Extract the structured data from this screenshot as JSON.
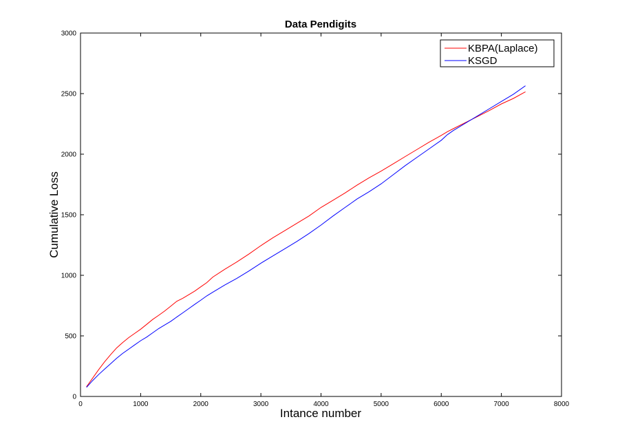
{
  "chart_data": {
    "type": "line",
    "title": "Data Pendigits",
    "xlabel": "Intance number",
    "ylabel": "Cumulative Loss",
    "xlim": [
      0,
      8000
    ],
    "ylim": [
      0,
      3000
    ],
    "xticks": [
      0,
      1000,
      2000,
      3000,
      4000,
      5000,
      6000,
      7000,
      8000
    ],
    "yticks": [
      0,
      500,
      1000,
      1500,
      2000,
      2500,
      3000
    ],
    "grid": false,
    "legend_position": "top-right",
    "series": [
      {
        "name": "KBPA(Laplace)",
        "color": "#ff0000",
        "x": [
          100,
          200,
          300,
          400,
          500,
          600,
          700,
          800,
          900,
          1000,
          1100,
          1200,
          1300,
          1400,
          1500,
          1600,
          1700,
          1800,
          1900,
          2000,
          2100,
          2200,
          2400,
          2600,
          2800,
          3000,
          3200,
          3400,
          3600,
          3800,
          4000,
          4200,
          4400,
          4600,
          4800,
          5000,
          5200,
          5400,
          5600,
          5800,
          6000,
          6100,
          6200,
          6400,
          6600,
          6800,
          7000,
          7200,
          7400
        ],
        "values": [
          80,
          150,
          220,
          285,
          345,
          400,
          445,
          485,
          520,
          555,
          595,
          635,
          670,
          705,
          745,
          785,
          810,
          840,
          870,
          905,
          940,
          985,
          1050,
          1110,
          1175,
          1245,
          1310,
          1370,
          1430,
          1490,
          1560,
          1620,
          1680,
          1745,
          1805,
          1860,
          1920,
          1980,
          2040,
          2100,
          2155,
          2185,
          2210,
          2260,
          2310,
          2360,
          2415,
          2460,
          2515
        ]
      },
      {
        "name": "KSGD",
        "color": "#0000ff",
        "x": [
          100,
          200,
          300,
          400,
          500,
          600,
          700,
          800,
          900,
          1000,
          1100,
          1200,
          1300,
          1400,
          1500,
          1600,
          1700,
          1800,
          1900,
          2000,
          2100,
          2200,
          2400,
          2600,
          2800,
          3000,
          3200,
          3400,
          3600,
          3800,
          4000,
          4200,
          4400,
          4600,
          4800,
          5000,
          5200,
          5400,
          5600,
          5800,
          6000,
          6100,
          6200,
          6400,
          6600,
          6800,
          7000,
          7200,
          7400
        ],
        "values": [
          75,
          130,
          180,
          225,
          270,
          315,
          355,
          390,
          425,
          460,
          490,
          525,
          560,
          590,
          620,
          655,
          690,
          725,
          760,
          795,
          830,
          860,
          920,
          975,
          1035,
          1100,
          1160,
          1220,
          1280,
          1345,
          1415,
          1490,
          1560,
          1630,
          1690,
          1755,
          1830,
          1905,
          1975,
          2045,
          2115,
          2160,
          2195,
          2255,
          2315,
          2375,
          2435,
          2495,
          2565
        ]
      }
    ]
  }
}
